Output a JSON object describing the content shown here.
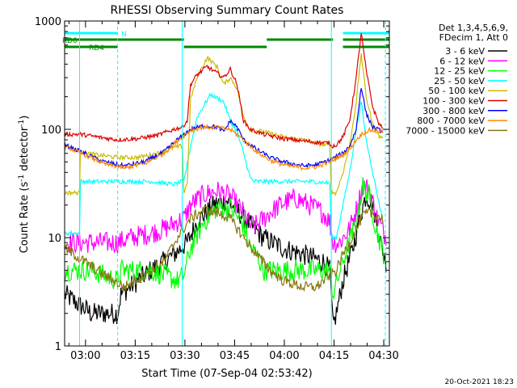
{
  "chart_data": {
    "type": "line",
    "title": "RHESSI Observing Summary Count Rates",
    "xlabel": "Start Time (07-Sep-04 02:53:42)",
    "ylabel_main": "Count Rate (s",
    "ylabel_sup": "-1",
    "ylabel_rest": " detector",
    "ylabel_sup2": "-1",
    "ylabel_end": ")",
    "y_scale": "log",
    "ylim": [
      1,
      1000
    ],
    "x_range_minutes": [
      0,
      98
    ],
    "x_ticks": [
      {
        "label": "03:00",
        "m": 6.3
      },
      {
        "label": "03:15",
        "m": 21.3
      },
      {
        "label": "03:30",
        "m": 36.3
      },
      {
        "label": "03:45",
        "m": 51.3
      },
      {
        "label": "04:00",
        "m": 66.3
      },
      {
        "label": "04:15",
        "m": 81.3
      },
      {
        "label": "04:30",
        "m": 96.3
      }
    ],
    "y_ticks": [
      {
        "label": "1",
        "v": 1
      },
      {
        "label": "10",
        "v": 10
      },
      {
        "label": "100",
        "v": 100
      },
      {
        "label": "1000",
        "v": 1000
      }
    ],
    "legend_header": [
      "Det 1,3,4,5,6,9,",
      "FDecim 1, Att 0"
    ],
    "series": [
      {
        "name": "3 - 6 keV",
        "color": "#000000",
        "points": [
          [
            0,
            3
          ],
          [
            8,
            2
          ],
          [
            16,
            2
          ],
          [
            17,
            3
          ],
          [
            22,
            4
          ],
          [
            26,
            5
          ],
          [
            30,
            6
          ],
          [
            33,
            7
          ],
          [
            37,
            9
          ],
          [
            40,
            14
          ],
          [
            45,
            20
          ],
          [
            49,
            22
          ],
          [
            52,
            18
          ],
          [
            56,
            13
          ],
          [
            60,
            10
          ],
          [
            66,
            8
          ],
          [
            72,
            7
          ],
          [
            78,
            6
          ],
          [
            80,
            5
          ],
          [
            81,
            1.5
          ],
          [
            82,
            2
          ],
          [
            84,
            4
          ],
          [
            87,
            8
          ],
          [
            89,
            15
          ],
          [
            91,
            25
          ],
          [
            93,
            20
          ],
          [
            95,
            10
          ],
          [
            97,
            6
          ]
        ]
      },
      {
        "name": "6 - 12 keV",
        "color": "#ff00ff",
        "points": [
          [
            0,
            9
          ],
          [
            8,
            9
          ],
          [
            16,
            9
          ],
          [
            20,
            10
          ],
          [
            26,
            11
          ],
          [
            30,
            12
          ],
          [
            34,
            14
          ],
          [
            36,
            15
          ],
          [
            38,
            20
          ],
          [
            42,
            25
          ],
          [
            46,
            27
          ],
          [
            50,
            24
          ],
          [
            54,
            17
          ],
          [
            56,
            13
          ],
          [
            58,
            13
          ],
          [
            62,
            17
          ],
          [
            66,
            21
          ],
          [
            70,
            23
          ],
          [
            74,
            20
          ],
          [
            78,
            17
          ],
          [
            80,
            14
          ],
          [
            81,
            9
          ],
          [
            83,
            9
          ],
          [
            86,
            12
          ],
          [
            88,
            18
          ],
          [
            90,
            30
          ],
          [
            92,
            28
          ],
          [
            94,
            16
          ],
          [
            97,
            10
          ]
        ]
      },
      {
        "name": "12 - 25 keV",
        "color": "#00ff00",
        "points": [
          [
            0,
            5
          ],
          [
            8,
            5
          ],
          [
            16,
            4
          ],
          [
            17,
            5
          ],
          [
            22,
            5
          ],
          [
            26,
            5
          ],
          [
            30,
            4.5
          ],
          [
            34,
            4
          ],
          [
            36,
            4.5
          ],
          [
            38,
            8
          ],
          [
            42,
            14
          ],
          [
            46,
            19
          ],
          [
            50,
            19
          ],
          [
            54,
            13
          ],
          [
            56,
            8
          ],
          [
            58,
            7
          ],
          [
            60,
            5
          ],
          [
            66,
            5
          ],
          [
            72,
            5
          ],
          [
            78,
            5
          ],
          [
            80,
            5
          ],
          [
            81,
            3
          ],
          [
            84,
            6
          ],
          [
            88,
            14
          ],
          [
            90,
            30
          ],
          [
            92,
            24
          ],
          [
            94,
            12
          ],
          [
            97,
            6
          ]
        ]
      },
      {
        "name": "25 - 50 keV",
        "color": "#00ffff",
        "points": [
          [
            0,
            11
          ],
          [
            4.5,
            11
          ],
          [
            4.6,
            33
          ],
          [
            16,
            33
          ],
          [
            26,
            33
          ],
          [
            33,
            31
          ],
          [
            35.5,
            33
          ],
          [
            36,
            33
          ],
          [
            38,
            70
          ],
          [
            40,
            130
          ],
          [
            44,
            210
          ],
          [
            48,
            180
          ],
          [
            50,
            120
          ],
          [
            52,
            95
          ],
          [
            54,
            60
          ],
          [
            56,
            36
          ],
          [
            57,
            33
          ],
          [
            66,
            33
          ],
          [
            74,
            33
          ],
          [
            80,
            32
          ],
          [
            80.5,
            10
          ],
          [
            82,
            10
          ],
          [
            84,
            20
          ],
          [
            86,
            40
          ],
          [
            88,
            100
          ],
          [
            89.5,
            180
          ],
          [
            91,
            80
          ],
          [
            93,
            40
          ],
          [
            95,
            20
          ],
          [
            96,
            15
          ]
        ]
      },
      {
        "name": "50 - 100 keV",
        "color": "#ccbb00",
        "points": [
          [
            0,
            26
          ],
          [
            4.5,
            26
          ],
          [
            4.6,
            62
          ],
          [
            10,
            58
          ],
          [
            16,
            55
          ],
          [
            22,
            55
          ],
          [
            28,
            60
          ],
          [
            33,
            68
          ],
          [
            35.5,
            70
          ],
          [
            36,
            26
          ],
          [
            37,
            32
          ],
          [
            38,
            190
          ],
          [
            40,
            300
          ],
          [
            43,
            460
          ],
          [
            46,
            380
          ],
          [
            48,
            260
          ],
          [
            50,
            300
          ],
          [
            52,
            240
          ],
          [
            54,
            130
          ],
          [
            56,
            100
          ],
          [
            60,
            95
          ],
          [
            66,
            85
          ],
          [
            72,
            80
          ],
          [
            78,
            72
          ],
          [
            80,
            72
          ],
          [
            80.5,
            26
          ],
          [
            82,
            26
          ],
          [
            84,
            40
          ],
          [
            86,
            70
          ],
          [
            88,
            180
          ],
          [
            89.5,
            500
          ],
          [
            91,
            200
          ],
          [
            93,
            110
          ],
          [
            95,
            85
          ],
          [
            96,
            85
          ]
        ]
      },
      {
        "name": "100 - 300 keV",
        "color": "#dd0000",
        "points": [
          [
            0,
            90
          ],
          [
            4.5,
            90
          ],
          [
            4.6,
            90
          ],
          [
            10,
            85
          ],
          [
            16,
            80
          ],
          [
            22,
            82
          ],
          [
            28,
            88
          ],
          [
            33,
            100
          ],
          [
            35.5,
            105
          ],
          [
            36,
            110
          ],
          [
            37,
            120
          ],
          [
            38,
            260
          ],
          [
            40,
            320
          ],
          [
            43,
            380
          ],
          [
            46,
            330
          ],
          [
            48,
            300
          ],
          [
            50,
            360
          ],
          [
            52,
            260
          ],
          [
            54,
            120
          ],
          [
            56,
            100
          ],
          [
            60,
            90
          ],
          [
            66,
            82
          ],
          [
            72,
            78
          ],
          [
            78,
            75
          ],
          [
            80,
            75
          ],
          [
            80.5,
            70
          ],
          [
            82,
            72
          ],
          [
            84,
            85
          ],
          [
            86,
            120
          ],
          [
            88,
            300
          ],
          [
            89.5,
            780
          ],
          [
            91,
            350
          ],
          [
            93,
            160
          ],
          [
            95,
            110
          ],
          [
            96,
            105
          ]
        ]
      },
      {
        "name": "300 - 800 keV",
        "color": "#0000ff",
        "points": [
          [
            0,
            72
          ],
          [
            6,
            60
          ],
          [
            12,
            50
          ],
          [
            18,
            46
          ],
          [
            24,
            50
          ],
          [
            30,
            62
          ],
          [
            34,
            80
          ],
          [
            38,
            100
          ],
          [
            42,
            108
          ],
          [
            46,
            105
          ],
          [
            48,
            95
          ],
          [
            50,
            120
          ],
          [
            52,
            105
          ],
          [
            54,
            80
          ],
          [
            58,
            65
          ],
          [
            62,
            55
          ],
          [
            66,
            50
          ],
          [
            72,
            46
          ],
          [
            76,
            47
          ],
          [
            80,
            52
          ],
          [
            82,
            56
          ],
          [
            84,
            60
          ],
          [
            86,
            70
          ],
          [
            88,
            100
          ],
          [
            89.5,
            250
          ],
          [
            91,
            140
          ],
          [
            93,
            105
          ],
          [
            95,
            98
          ],
          [
            96,
            95
          ]
        ]
      },
      {
        "name": "800 - 7000 keV",
        "color": "#ff8800",
        "points": [
          [
            0,
            70
          ],
          [
            6,
            58
          ],
          [
            12,
            48
          ],
          [
            18,
            44
          ],
          [
            24,
            48
          ],
          [
            30,
            60
          ],
          [
            34,
            78
          ],
          [
            38,
            98
          ],
          [
            42,
            105
          ],
          [
            46,
            103
          ],
          [
            50,
            100
          ],
          [
            54,
            80
          ],
          [
            58,
            62
          ],
          [
            62,
            52
          ],
          [
            66,
            47
          ],
          [
            72,
            44
          ],
          [
            76,
            45
          ],
          [
            80,
            50
          ],
          [
            82,
            54
          ],
          [
            84,
            58
          ],
          [
            86,
            66
          ],
          [
            88,
            80
          ],
          [
            90,
            92
          ],
          [
            92,
            98
          ],
          [
            94,
            97
          ],
          [
            96,
            95
          ]
        ]
      },
      {
        "name": "7000 - 15000 keV",
        "color": "#887711",
        "points": [
          [
            0,
            8
          ],
          [
            6,
            6
          ],
          [
            12,
            4.5
          ],
          [
            18,
            3.5
          ],
          [
            24,
            4.5
          ],
          [
            30,
            6
          ],
          [
            34,
            10
          ],
          [
            38,
            15
          ],
          [
            42,
            18
          ],
          [
            46,
            17
          ],
          [
            50,
            15
          ],
          [
            54,
            10
          ],
          [
            58,
            7
          ],
          [
            62,
            5
          ],
          [
            66,
            4
          ],
          [
            72,
            3.5
          ],
          [
            76,
            3.5
          ],
          [
            80,
            4.5
          ],
          [
            82,
            5
          ],
          [
            84,
            7
          ],
          [
            86,
            9
          ],
          [
            88,
            12
          ],
          [
            90,
            16
          ],
          [
            92,
            17
          ],
          [
            94,
            16
          ],
          [
            96,
            15
          ]
        ]
      }
    ],
    "bars": [
      {
        "label": "N",
        "color": "#00ffff",
        "row": 0,
        "segments": [
          [
            0,
            16
          ],
          [
            84,
            98
          ]
        ]
      },
      {
        "label": "RD0",
        "color": "#008800",
        "row": 1,
        "segments": [
          [
            0,
            36
          ],
          [
            61,
            81
          ],
          [
            84,
            98
          ]
        ]
      },
      {
        "label": "RD4",
        "color": "#008800",
        "row": 2,
        "segments": [
          [
            0,
            16
          ],
          [
            36,
            61
          ],
          [
            84,
            98
          ]
        ]
      }
    ],
    "vlines": [
      {
        "m": 4.5,
        "color": "#00ffff",
        "style": "solid"
      },
      {
        "m": 16,
        "color": "#00ffff",
        "style": "dash"
      },
      {
        "m": 35.5,
        "color": "#00ffff",
        "style": "solid"
      },
      {
        "m": 80.5,
        "color": "#00ffff",
        "style": "solid"
      },
      {
        "m": 96.8,
        "color": "#00ffff",
        "style": "dash"
      }
    ],
    "footer_date": "20-Oct-2021 18:23"
  }
}
